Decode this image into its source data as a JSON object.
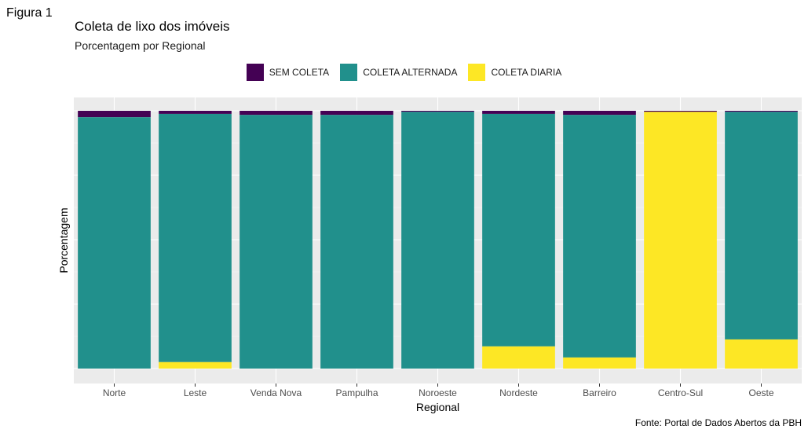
{
  "figure_label": "Figura 1",
  "source_note": "Fonte: Portal de Dados Abertos da PBH",
  "colors": {
    "panel": "#ebebeb",
    "grid_major": "#ffffff",
    "grid_minor": "#f5f5f5"
  },
  "chart_data": {
    "type": "bar",
    "stacked": true,
    "normalized": true,
    "title": "Coleta de lixo dos imóveis",
    "subtitle": "Porcentagem por Regional",
    "xlabel": "Regional",
    "ylabel": "Porcentagem",
    "ylim": [
      0,
      1
    ],
    "y_ticks_visible": false,
    "grid": true,
    "legend_position": "top",
    "categories": [
      "Norte",
      "Leste",
      "Venda Nova",
      "Pampulha",
      "Noroeste",
      "Nordeste",
      "Barreiro",
      "Centro-Sul",
      "Oeste"
    ],
    "series": [
      {
        "name": "SEM COLETA",
        "color": "#440154",
        "values": [
          0.025,
          0.012,
          0.016,
          0.016,
          0.004,
          0.012,
          0.016,
          0.004,
          0.004
        ]
      },
      {
        "name": "COLETA ALTERNADA",
        "color": "#21908C",
        "values": [
          0.975,
          0.963,
          0.984,
          0.984,
          0.996,
          0.902,
          0.941,
          0.0,
          0.883
        ]
      },
      {
        "name": "COLETA DIARIA",
        "color": "#FDE725",
        "values": [
          0.0,
          0.025,
          0.0,
          0.0,
          0.0,
          0.086,
          0.043,
          0.996,
          0.113
        ]
      }
    ]
  }
}
